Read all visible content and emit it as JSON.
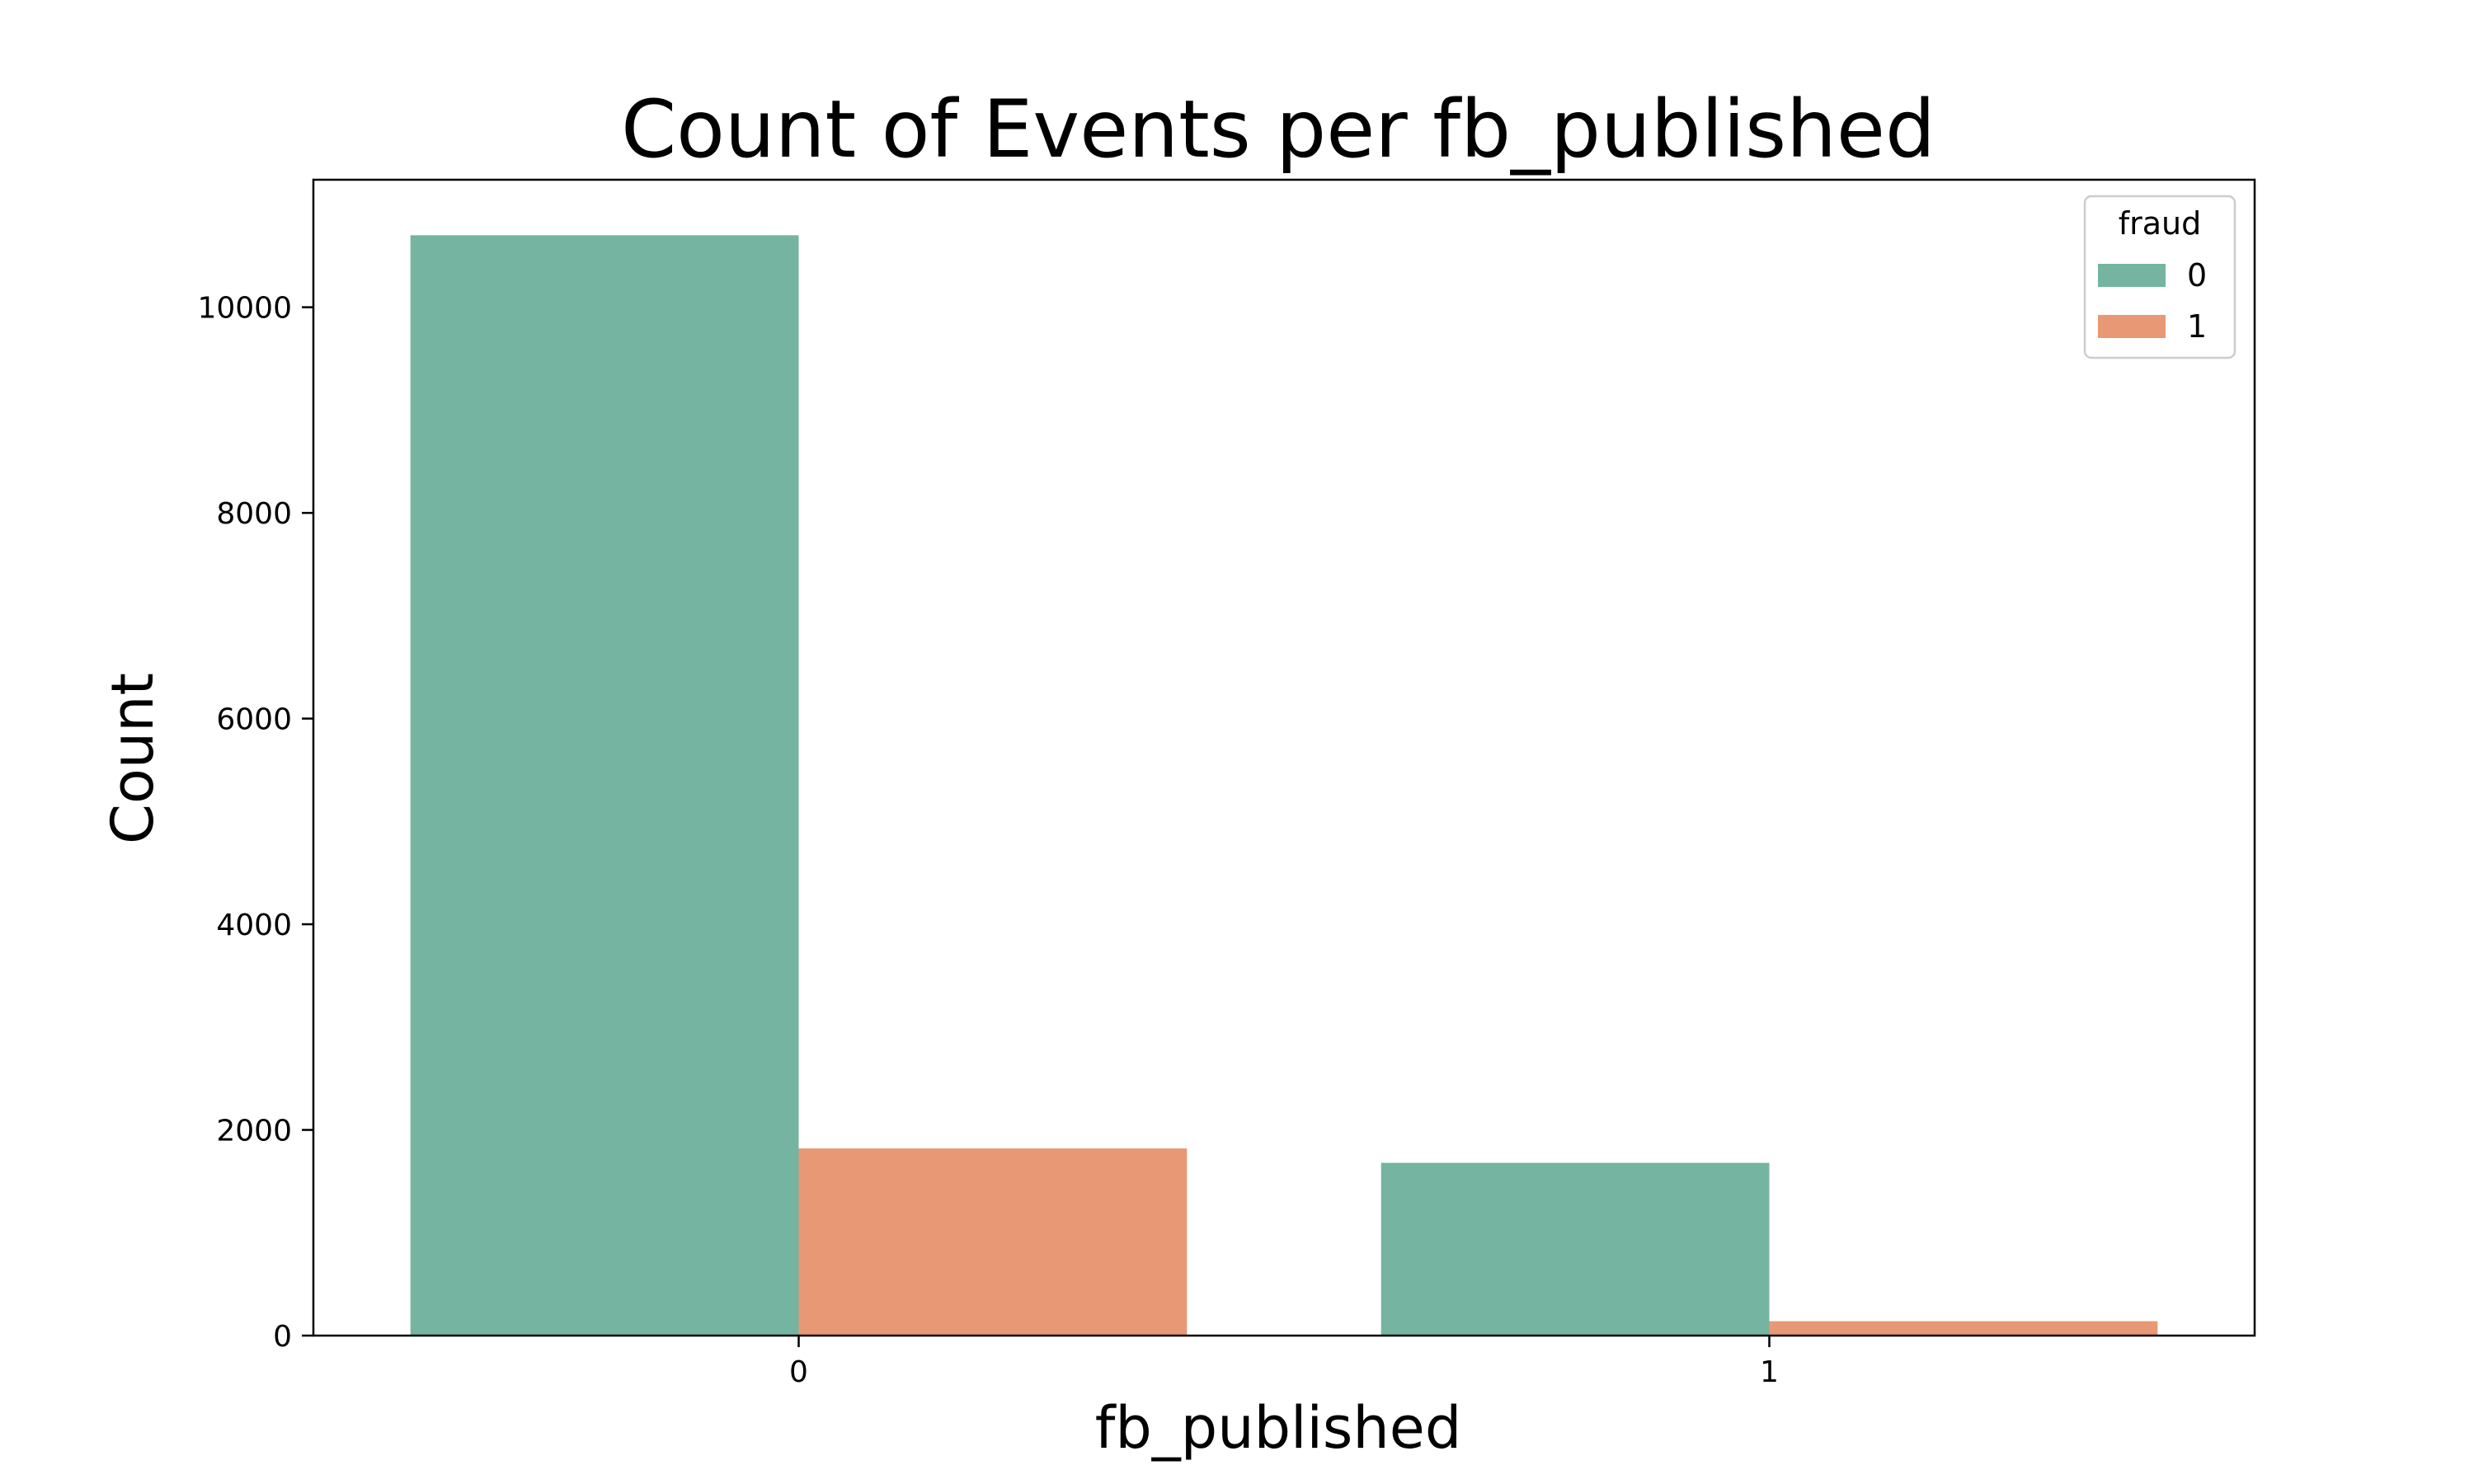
{
  "chart_data": {
    "type": "bar",
    "title": "Count of Events per fb_published",
    "xlabel": "fb_published",
    "ylabel": "Count",
    "categories": [
      "0",
      "1"
    ],
    "series": [
      {
        "name": "0",
        "color": "#74b4a0",
        "values": [
          10700,
          1680
        ]
      },
      {
        "name": "1",
        "color": "#e89874",
        "values": [
          1820,
          140
        ]
      }
    ],
    "ylim": [
      0,
      11240
    ],
    "yticks": [
      0,
      2000,
      4000,
      6000,
      8000,
      10000
    ],
    "yticks_labels": [
      "0",
      "2000",
      "4000",
      "6000",
      "8000",
      "10000"
    ],
    "grid": false,
    "legend": {
      "title": "fraud",
      "position": "top-right"
    }
  }
}
